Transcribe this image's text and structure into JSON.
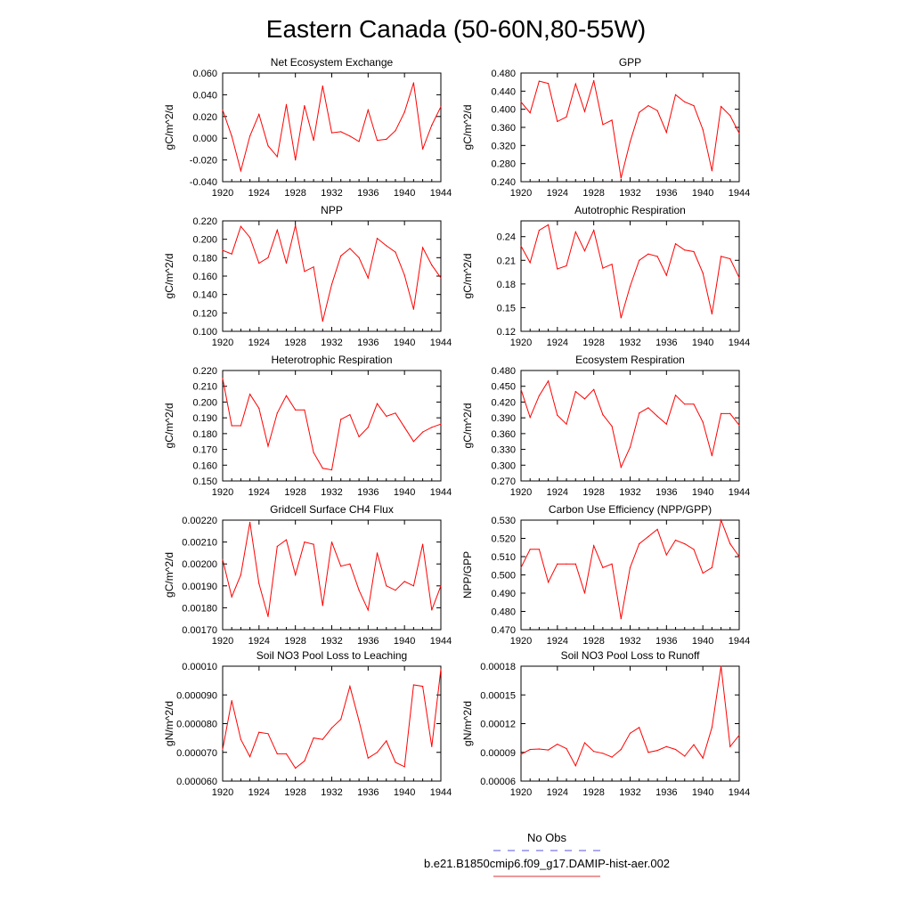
{
  "title": "Eastern Canada (50-60N,80-55W)",
  "legend": {
    "entries": [
      {
        "label": "No Obs",
        "color": "#5555dd",
        "dash": true
      },
      {
        "label": "b.e21.B1850cmip6.f09_g17.DAMIP-hist-aer.002",
        "color": "#dd3333",
        "dash": false
      }
    ]
  },
  "chart_data": [
    {
      "type": "line",
      "title": "Net Ecosystem Exchange",
      "ylabel": "gC/m^2/d",
      "ylim": [
        -0.04,
        0.06
      ],
      "yticks": [
        "-0.040",
        "-0.020",
        "0.000",
        "0.020",
        "0.040",
        "0.060"
      ],
      "xlim": [
        1920,
        1944
      ],
      "xticks": [
        "1920",
        "1924",
        "1928",
        "1932",
        "1936",
        "1940",
        "1944"
      ],
      "color": "#ff0000",
      "x": [
        1920,
        1921,
        1922,
        1923,
        1924,
        1925,
        1926,
        1927,
        1928,
        1929,
        1930,
        1931,
        1932,
        1933,
        1934,
        1935,
        1936,
        1937,
        1938,
        1939,
        1940,
        1941,
        1942,
        1943,
        1944
      ],
      "values": [
        0.026,
        0.002,
        -0.03,
        0.002,
        0.022,
        -0.007,
        -0.017,
        0.031,
        -0.02,
        0.03,
        -0.002,
        0.048,
        0.005,
        0.006,
        0.002,
        -0.003,
        0.026,
        -0.002,
        -0.001,
        0.007,
        0.024,
        0.051,
        -0.01,
        0.012,
        0.029
      ]
    },
    {
      "type": "line",
      "title": "GPP",
      "ylabel": "gC/m^2/d",
      "ylim": [
        0.24,
        0.48
      ],
      "yticks": [
        "0.240",
        "0.280",
        "0.320",
        "0.360",
        "0.400",
        "0.440",
        "0.480"
      ],
      "xlim": [
        1920,
        1944
      ],
      "xticks": [
        "1920",
        "1924",
        "1928",
        "1932",
        "1936",
        "1940",
        "1944"
      ],
      "color": "#ff0000",
      "x": [
        1920,
        1921,
        1922,
        1923,
        1924,
        1925,
        1926,
        1927,
        1928,
        1929,
        1930,
        1931,
        1932,
        1933,
        1934,
        1935,
        1936,
        1937,
        1938,
        1939,
        1940,
        1941,
        1942,
        1943,
        1944
      ],
      "values": [
        0.416,
        0.392,
        0.462,
        0.457,
        0.373,
        0.383,
        0.456,
        0.395,
        0.463,
        0.366,
        0.376,
        0.248,
        0.328,
        0.393,
        0.408,
        0.397,
        0.349,
        0.432,
        0.416,
        0.408,
        0.355,
        0.264,
        0.406,
        0.386,
        0.347
      ]
    },
    {
      "type": "line",
      "title": "NPP",
      "ylabel": "gC/m^2/d",
      "ylim": [
        0.1,
        0.22
      ],
      "yticks": [
        "0.100",
        "0.120",
        "0.140",
        "0.160",
        "0.180",
        "0.200",
        "0.220"
      ],
      "xlim": [
        1920,
        1944
      ],
      "xticks": [
        "1920",
        "1924",
        "1928",
        "1932",
        "1936",
        "1940",
        "1944"
      ],
      "color": "#ff0000",
      "x": [
        1920,
        1921,
        1922,
        1923,
        1924,
        1925,
        1926,
        1927,
        1928,
        1929,
        1930,
        1931,
        1932,
        1933,
        1934,
        1935,
        1936,
        1937,
        1938,
        1939,
        1940,
        1941,
        1942,
        1943,
        1944
      ],
      "values": [
        0.188,
        0.184,
        0.214,
        0.202,
        0.174,
        0.18,
        0.21,
        0.174,
        0.215,
        0.165,
        0.17,
        0.111,
        0.151,
        0.182,
        0.19,
        0.18,
        0.158,
        0.201,
        0.193,
        0.186,
        0.161,
        0.124,
        0.191,
        0.172,
        0.158
      ]
    },
    {
      "type": "line",
      "title": "Autotrophic Respiration",
      "ylabel": "gC/m^2/d",
      "ylim": [
        0.12,
        0.26
      ],
      "yticks": [
        "0.12",
        "0.15",
        "0.18",
        "0.21",
        "0.24"
      ],
      "xlim": [
        1920,
        1944
      ],
      "xticks": [
        "1920",
        "1924",
        "1928",
        "1932",
        "1936",
        "1940",
        "1944"
      ],
      "color": "#ff0000",
      "x": [
        1920,
        1921,
        1922,
        1923,
        1924,
        1925,
        1926,
        1927,
        1928,
        1929,
        1930,
        1931,
        1932,
        1933,
        1934,
        1935,
        1936,
        1937,
        1938,
        1939,
        1940,
        1941,
        1942,
        1943,
        1944
      ],
      "values": [
        0.228,
        0.207,
        0.248,
        0.255,
        0.199,
        0.203,
        0.246,
        0.222,
        0.248,
        0.2,
        0.205,
        0.137,
        0.177,
        0.21,
        0.218,
        0.215,
        0.191,
        0.231,
        0.223,
        0.221,
        0.194,
        0.142,
        0.215,
        0.212,
        0.188
      ]
    },
    {
      "type": "line",
      "title": "Heterotrophic Respiration",
      "ylabel": "gC/m^2/d",
      "ylim": [
        0.15,
        0.22
      ],
      "yticks": [
        "0.150",
        "0.160",
        "0.170",
        "0.180",
        "0.190",
        "0.200",
        "0.210",
        "0.220"
      ],
      "xlim": [
        1920,
        1944
      ],
      "xticks": [
        "1920",
        "1924",
        "1928",
        "1932",
        "1936",
        "1940",
        "1944"
      ],
      "color": "#ff0000",
      "x": [
        1920,
        1921,
        1922,
        1923,
        1924,
        1925,
        1926,
        1927,
        1928,
        1929,
        1930,
        1931,
        1932,
        1933,
        1934,
        1935,
        1936,
        1937,
        1938,
        1939,
        1940,
        1941,
        1942,
        1943,
        1944
      ],
      "values": [
        0.215,
        0.185,
        0.185,
        0.205,
        0.196,
        0.172,
        0.193,
        0.204,
        0.195,
        0.195,
        0.168,
        0.158,
        0.157,
        0.189,
        0.192,
        0.178,
        0.184,
        0.199,
        0.191,
        0.193,
        0.184,
        0.175,
        0.181,
        0.184,
        0.186
      ]
    },
    {
      "type": "line",
      "title": "Ecosystem Respiration",
      "ylabel": "gC/m^2/d",
      "ylim": [
        0.27,
        0.48
      ],
      "yticks": [
        "0.270",
        "0.300",
        "0.330",
        "0.360",
        "0.390",
        "0.420",
        "0.450",
        "0.480"
      ],
      "xlim": [
        1920,
        1944
      ],
      "xticks": [
        "1920",
        "1924",
        "1928",
        "1932",
        "1936",
        "1940",
        "1944"
      ],
      "color": "#ff0000",
      "x": [
        1920,
        1921,
        1922,
        1923,
        1924,
        1925,
        1926,
        1927,
        1928,
        1929,
        1930,
        1931,
        1932,
        1933,
        1934,
        1935,
        1936,
        1937,
        1938,
        1939,
        1940,
        1941,
        1942,
        1943,
        1944
      ],
      "values": [
        0.444,
        0.391,
        0.432,
        0.46,
        0.395,
        0.378,
        0.44,
        0.426,
        0.444,
        0.396,
        0.374,
        0.296,
        0.334,
        0.399,
        0.409,
        0.393,
        0.378,
        0.433,
        0.416,
        0.416,
        0.382,
        0.318,
        0.398,
        0.398,
        0.376
      ]
    },
    {
      "type": "line",
      "title": "Gridcell Surface CH4 Flux",
      "ylabel": "gC/m^2/d",
      "ylim": [
        0.0017,
        0.0022
      ],
      "yticks": [
        "0.00170",
        "0.00180",
        "0.00190",
        "0.00200",
        "0.00210",
        "0.00220"
      ],
      "xlim": [
        1920,
        1944
      ],
      "xticks": [
        "1920",
        "1924",
        "1928",
        "1932",
        "1936",
        "1940",
        "1944"
      ],
      "color": "#ff0000",
      "x": [
        1920,
        1921,
        1922,
        1923,
        1924,
        1925,
        1926,
        1927,
        1928,
        1929,
        1930,
        1931,
        1932,
        1933,
        1934,
        1935,
        1936,
        1937,
        1938,
        1939,
        1940,
        1941,
        1942,
        1943,
        1944
      ],
      "values": [
        0.00202,
        0.00185,
        0.00195,
        0.00219,
        0.00191,
        0.00176,
        0.00208,
        0.00211,
        0.00195,
        0.0021,
        0.00209,
        0.00181,
        0.0021,
        0.00199,
        0.002,
        0.00188,
        0.00179,
        0.00205,
        0.0019,
        0.00188,
        0.00192,
        0.0019,
        0.00209,
        0.00179,
        0.0019
      ]
    },
    {
      "type": "line",
      "title": "Carbon Use Efficiency (NPP/GPP)",
      "ylabel": "NPP/GPP",
      "ylim": [
        0.47,
        0.53
      ],
      "yticks": [
        "0.470",
        "0.480",
        "0.490",
        "0.500",
        "0.510",
        "0.520",
        "0.530"
      ],
      "xlim": [
        1920,
        1944
      ],
      "xticks": [
        "1920",
        "1924",
        "1928",
        "1932",
        "1936",
        "1940",
        "1944"
      ],
      "color": "#ff0000",
      "x": [
        1920,
        1921,
        1922,
        1923,
        1924,
        1925,
        1926,
        1927,
        1928,
        1929,
        1930,
        1931,
        1932,
        1933,
        1934,
        1935,
        1936,
        1937,
        1938,
        1939,
        1940,
        1941,
        1942,
        1943,
        1944
      ],
      "values": [
        0.504,
        0.514,
        0.514,
        0.496,
        0.506,
        0.506,
        0.506,
        0.49,
        0.516,
        0.504,
        0.506,
        0.476,
        0.504,
        0.517,
        0.521,
        0.525,
        0.511,
        0.519,
        0.517,
        0.514,
        0.501,
        0.504,
        0.53,
        0.517,
        0.51
      ]
    },
    {
      "type": "line",
      "title": "Soil NO3 Pool Loss to Leaching",
      "ylabel": "gN/m^2/d",
      "ylim": [
        6e-05,
        0.0001
      ],
      "yticks": [
        "0.000060",
        "0.000070",
        "0.000080",
        "0.000090",
        "0.00010"
      ],
      "xlim": [
        1920,
        1944
      ],
      "xticks": [
        "1920",
        "1924",
        "1928",
        "1932",
        "1936",
        "1940",
        "1944"
      ],
      "color": "#ff0000",
      "x": [
        1920,
        1921,
        1922,
        1923,
        1924,
        1925,
        1926,
        1927,
        1928,
        1929,
        1930,
        1931,
        1932,
        1933,
        1934,
        1935,
        1936,
        1937,
        1938,
        1939,
        1940,
        1941,
        1942,
        1943,
        1944
      ],
      "values": [
        7.1e-05,
        8.8e-05,
        7.45e-05,
        6.85e-05,
        7.7e-05,
        7.65e-05,
        6.95e-05,
        6.95e-05,
        6.45e-05,
        6.7e-05,
        7.5e-05,
        7.45e-05,
        7.85e-05,
        8.15e-05,
        9.3e-05,
        8.1e-05,
        6.8e-05,
        7e-05,
        7.4e-05,
        6.65e-05,
        6.5e-05,
        9.35e-05,
        9.3e-05,
        7.2e-05,
        9.9e-05
      ]
    },
    {
      "type": "line",
      "title": "Soil NO3 Pool Loss to Runoff",
      "ylabel": "gN/m^2/d",
      "ylim": [
        6e-05,
        0.00018
      ],
      "yticks": [
        "0.00006",
        "0.00009",
        "0.00012",
        "0.00015",
        "0.00018"
      ],
      "xlim": [
        1920,
        1944
      ],
      "xticks": [
        "1920",
        "1924",
        "1928",
        "1932",
        "1936",
        "1940",
        "1944"
      ],
      "color": "#ff0000",
      "x": [
        1920,
        1921,
        1922,
        1923,
        1924,
        1925,
        1926,
        1927,
        1928,
        1929,
        1930,
        1931,
        1932,
        1933,
        1934,
        1935,
        1936,
        1937,
        1938,
        1939,
        1940,
        1941,
        1942,
        1943,
        1944
      ],
      "values": [
        8.8e-05,
        9.3e-05,
        9.35e-05,
        9.25e-05,
        9.85e-05,
        9.4e-05,
        7.6e-05,
        0.0001,
        9.1e-05,
        8.9e-05,
        8.5e-05,
        9.3e-05,
        0.00011,
        0.000116,
        9e-05,
        9.2e-05,
        9.6e-05,
        9.3e-05,
        8.6e-05,
        9.8e-05,
        8.4e-05,
        0.000116,
        0.00018,
        9.6e-05,
        0.000108
      ]
    }
  ]
}
